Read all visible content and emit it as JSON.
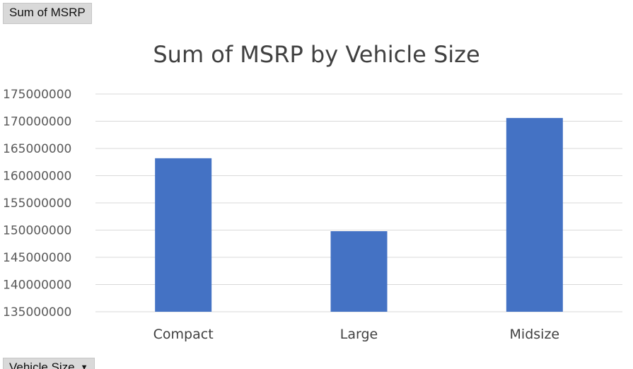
{
  "pivot": {
    "values_field_label": "Sum of MSRP",
    "axis_field_label": "Vehicle Size"
  },
  "colors": {
    "bar": "#4472c4",
    "gridline": "#d9d9d9",
    "field_button_bg": "#d9d9d9"
  },
  "icons": {
    "axis_field_dropdown": "triangle-down-icon"
  },
  "chart_data": {
    "type": "bar",
    "title": "Sum of MSRP by Vehicle Size",
    "xlabel": "",
    "ylabel": "",
    "categories": [
      "Compact",
      "Large",
      "Midsize"
    ],
    "values": [
      163200000,
      149800000,
      170600000
    ],
    "ylim": [
      135000000,
      175000000
    ],
    "yticks": [
      135000000,
      140000000,
      145000000,
      150000000,
      155000000,
      160000000,
      165000000,
      170000000,
      175000000
    ],
    "ytick_labels": [
      "135000000",
      "140000000",
      "145000000",
      "150000000",
      "155000000",
      "160000000",
      "165000000",
      "170000000",
      "175000000"
    ],
    "grid": true,
    "legend": "none"
  }
}
